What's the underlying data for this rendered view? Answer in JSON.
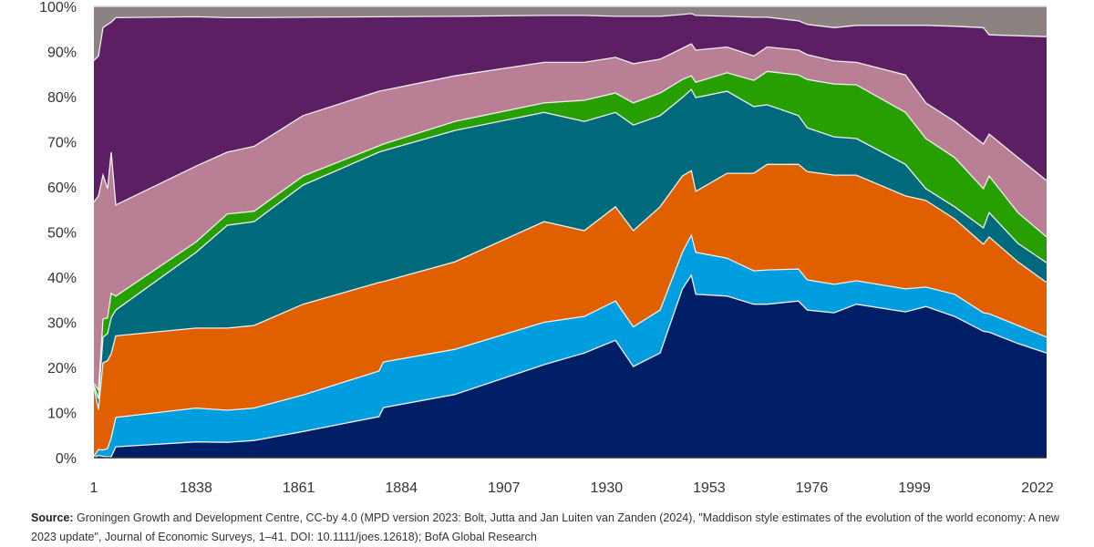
{
  "chart_data": {
    "type": "area",
    "stacked": "percent",
    "title": "",
    "xlabel": "",
    "ylabel": "",
    "ylim": [
      0,
      100
    ],
    "yticks": [
      "0%",
      "10%",
      "20%",
      "30%",
      "40%",
      "50%",
      "60%",
      "70%",
      "80%",
      "90%",
      "100%"
    ],
    "xticks": [
      "1",
      "1838",
      "1861",
      "1884",
      "1907",
      "1930",
      "1953",
      "1976",
      "1999",
      "2022"
    ],
    "grid": false,
    "legend": "none",
    "x": [
      1,
      1000,
      1500,
      1600,
      1700,
      1820,
      1838,
      1845,
      1851,
      1862,
      1879,
      1880,
      1896,
      1916,
      1925,
      1932,
      1936,
      1942,
      1947,
      1949,
      1950,
      1957,
      1963,
      1966,
      1973,
      1975,
      1981,
      1986,
      1997,
      2001,
      2006,
      2011,
      2012,
      2017,
      2022
    ],
    "series": [
      {
        "color": "#001f66",
        "values": [
          0,
          0.5,
          0.3,
          0.2,
          0.2,
          2.4,
          3.5,
          3.4,
          3.8,
          5.8,
          9.1,
          11.1,
          14,
          20.6,
          23.2,
          26,
          20.2,
          23.2,
          37.4,
          40.4,
          36.2,
          35.8,
          34,
          34,
          34.7,
          32.7,
          32.1,
          34,
          32.3,
          33.5,
          31.3,
          28,
          27.8,
          25.3,
          23.2
        ]
      },
      {
        "color": "#009ddf",
        "values": [
          0.3,
          1.3,
          1.4,
          1.8,
          4.2,
          6.5,
          7.5,
          7.1,
          7.2,
          8.1,
          10.1,
          10.1,
          10,
          9.4,
          8.1,
          8.7,
          8.8,
          9.5,
          8.1,
          8.9,
          9.3,
          8.4,
          7.4,
          7.6,
          7.1,
          6.7,
          6.3,
          5.2,
          5.1,
          4.3,
          4.9,
          4.1,
          4.1,
          4,
          3.5
        ]
      },
      {
        "color": "#e06000",
        "values": [
          15.3,
          8.8,
          19.3,
          19.5,
          18.6,
          18.1,
          17.7,
          18.2,
          18.3,
          20.1,
          19.6,
          17.8,
          19.4,
          22.3,
          19,
          20.9,
          21.3,
          22.9,
          16.9,
          14.3,
          13.5,
          18.8,
          21.6,
          23.4,
          23.2,
          24,
          24.2,
          23.4,
          20.6,
          19.2,
          16.7,
          15.2,
          17,
          14.1,
          12.1
        ]
      },
      {
        "color": "#006a7d",
        "values": [
          0.4,
          2.4,
          5.7,
          6,
          8,
          5.7,
          16.8,
          22.8,
          23,
          26.4,
          28.9,
          29,
          29.1,
          24.2,
          24.2,
          20.9,
          23.4,
          20.2,
          17.4,
          18,
          20.8,
          18.2,
          14.8,
          13.2,
          10.8,
          9.7,
          8.5,
          8.1,
          7,
          2.6,
          2.7,
          3.6,
          5.4,
          4.1,
          4.4
        ]
      },
      {
        "color": "#279f00",
        "values": [
          0.5,
          2,
          4,
          3.5,
          5.4,
          3.1,
          2.3,
          2.5,
          2.3,
          2,
          1.4,
          1.5,
          2,
          2.1,
          4.7,
          4.3,
          4.9,
          5,
          4,
          3,
          3.4,
          4.1,
          5.8,
          7.4,
          9,
          10.7,
          11.7,
          11.9,
          11.5,
          11.1,
          10.9,
          8.7,
          8.1,
          6.8,
          5.7
        ]
      },
      {
        "color": "#b97f95",
        "values": [
          40.1,
          43,
          31.9,
          28.6,
          31.3,
          20.2,
          16.8,
          13.7,
          14.4,
          13.4,
          12.1,
          11.9,
          10.1,
          9,
          8.4,
          7.9,
          8.7,
          7.5,
          6.9,
          7.1,
          7.1,
          5.7,
          5.4,
          5.4,
          5.5,
          5.5,
          5.1,
          5,
          8.3,
          7.9,
          8,
          9.9,
          9.3,
          12.2,
          12.5
        ]
      },
      {
        "color": "#5c1f63",
        "values": [
          31.4,
          31,
          32.7,
          36.4,
          28.8,
          41.5,
          33.1,
          29.8,
          28.5,
          21.8,
          16.5,
          16.3,
          13.2,
          10.4,
          10.4,
          9.1,
          10.5,
          9.5,
          7.5,
          6.7,
          7.7,
          6.8,
          8.6,
          6.6,
          6.5,
          6.7,
          7.4,
          8.2,
          11,
          17.2,
          21.1,
          25.8,
          22,
          27,
          31.9
        ]
      },
      {
        "color": "#8c8282",
        "values": [
          12,
          11,
          4.7,
          4,
          3.5,
          2.5,
          2.3,
          2.5,
          2.5,
          2.4,
          2.3,
          2.3,
          2.2,
          2,
          2,
          2.2,
          2.2,
          2.2,
          1.8,
          1.6,
          2,
          2.2,
          2.4,
          2.4,
          3.2,
          4,
          4.7,
          4.2,
          4.2,
          4.2,
          4.4,
          4.7,
          6.3,
          6.5,
          6.7
        ]
      }
    ]
  },
  "source": {
    "label": "Source:",
    "text": " Groningen Growth and Development Centre, CC-by 4.0 (MPD version 2023: Bolt, Jutta and Jan Luiten van Zanden (2024), \"Maddison style estimates of the evolution of the world economy: A new 2023 update\", Journal of Economic Surveys, 1–41. DOI: 10.1111/joes.12618); BofA Global Research"
  }
}
